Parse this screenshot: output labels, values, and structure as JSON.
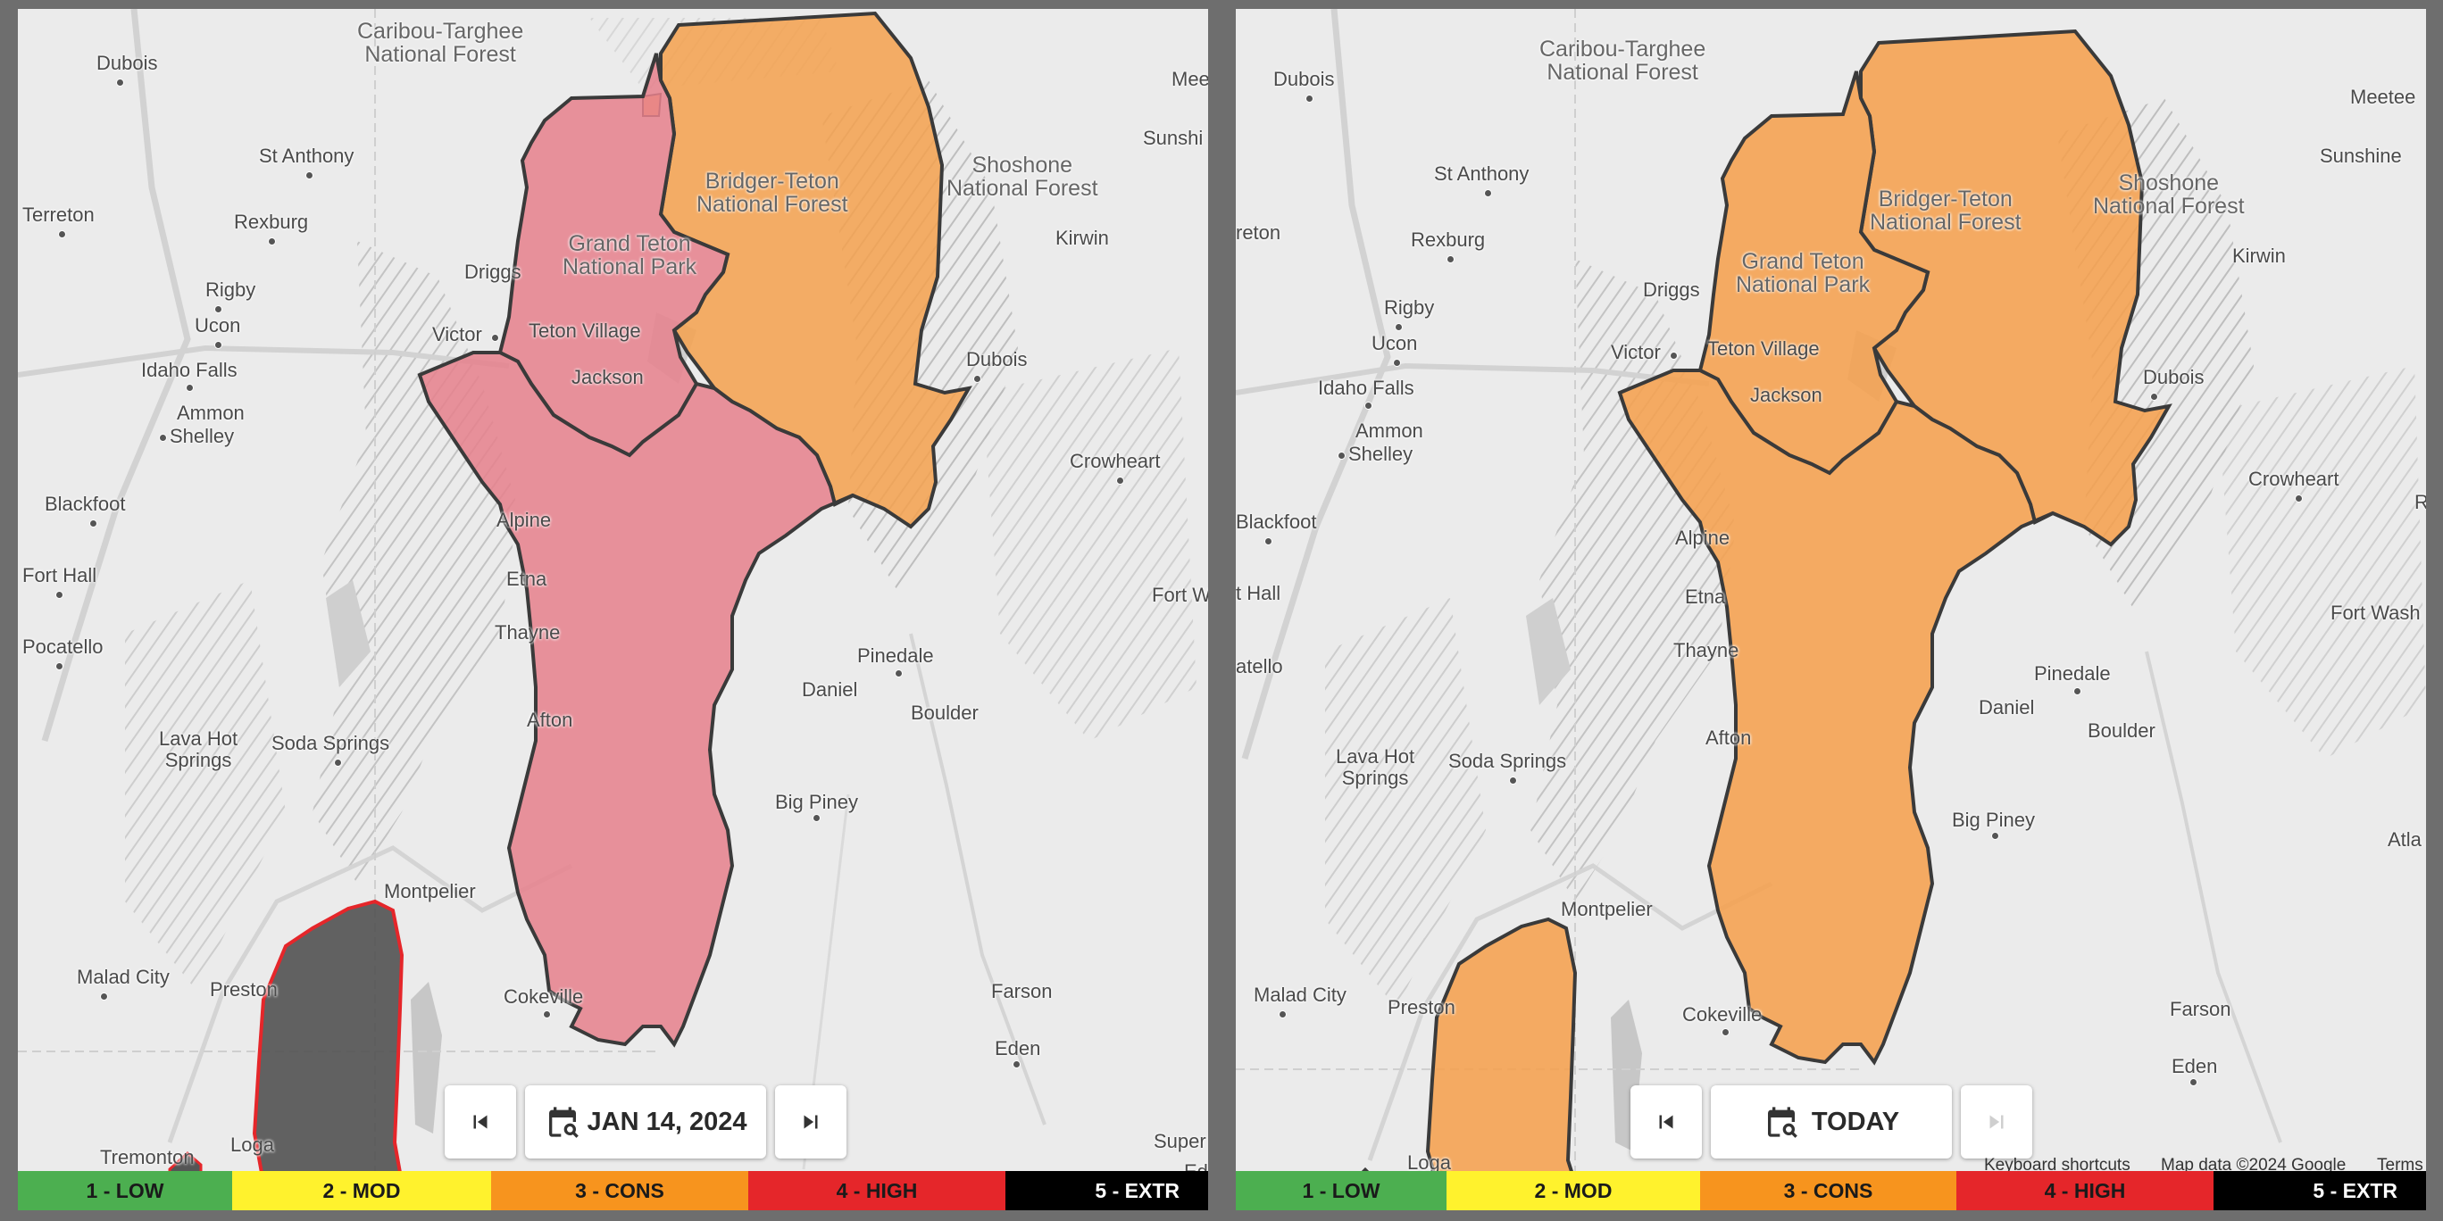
{
  "left_panel": {
    "date_label": "JAN 14, 2024",
    "zones": [
      {
        "name": "north",
        "rating": "3 - CONS",
        "color": "#f5a14e"
      },
      {
        "name": "grand-teton",
        "rating": "4 - HIGH",
        "color": "#e6808c"
      },
      {
        "name": "south",
        "rating": "4 - HIGH",
        "color": "#e6808c"
      },
      {
        "name": "far-south",
        "rating": "none",
        "color": "#555555"
      }
    ],
    "labels": {
      "caribou": "Caribou-Targhee\nNational Forest",
      "bridger": "Bridger-Teton\nNational Forest",
      "grand_teton": "Grand Teton\nNational Park",
      "shoshone": "Shoshone\nNational Forest",
      "dubois_w": "Dubois",
      "st_anthony": "St Anthony",
      "terreton": "Terreton",
      "rexburg": "Rexburg",
      "rigby": "Rigby",
      "ucon": "Ucon",
      "idaho_falls": "Idaho Falls",
      "ammon": "Ammon",
      "shelley": "Shelley",
      "blackfoot": "Blackfoot",
      "fort_hall": "Fort Hall",
      "pocatello": "Pocatello",
      "lava_hot": "Lava Hot\nSprings",
      "soda": "Soda Springs",
      "montpelier": "Montpelier",
      "malad": "Malad City",
      "preston": "Preston",
      "tremonton": "Tremonton",
      "logan": "Loga",
      "driggs": "Driggs",
      "victor": "Victor",
      "teton_village": "Teton Village",
      "jackson": "Jackson",
      "alpine": "Alpine",
      "etna": "Etna",
      "thayne": "Thayne",
      "afton": "Afton",
      "cokeville": "Cokeville",
      "dubois_e": "Dubois",
      "crowheart": "Crowheart",
      "kirwin": "Kirwin",
      "sunshine": "Sunshi",
      "meeteetse": "Mee",
      "fort_w": "Fort W",
      "pinedale": "Pinedale",
      "daniel": "Daniel",
      "boulder": "Boulder",
      "big_piney": "Big Piney",
      "farson": "Farson",
      "eden": "Eden",
      "superior": "Super",
      "eden_right": "Ede"
    }
  },
  "right_panel": {
    "date_label": "TODAY",
    "zones": [
      {
        "name": "north",
        "rating": "3 - CONS",
        "color": "#f5a14e"
      },
      {
        "name": "grand-teton",
        "rating": "3 - CONS",
        "color": "#f5a14e"
      },
      {
        "name": "south",
        "rating": "3 - CONS",
        "color": "#f5a14e"
      },
      {
        "name": "far-south",
        "rating": "3 - CONS",
        "color": "#f5a14e"
      }
    ],
    "labels": {
      "caribou": "Caribou-Targhee\nNational Forest",
      "bridger": "Bridger-Teton\nNational Forest",
      "grand_teton": "Grand Teton\nNational Park",
      "shoshone": "Shoshone\nNational Forest",
      "dubois_w": "Dubois",
      "st_anthony": "St Anthony",
      "terreton": "reton",
      "rexburg": "Rexburg",
      "rigby": "Rigby",
      "ucon": "Ucon",
      "idaho_falls": "Idaho Falls",
      "ammon": "Ammon",
      "shelley": "Shelley",
      "blackfoot": "Blackfoot",
      "fort_hall": "t Hall",
      "pocatello": "atello",
      "lava_hot": "Lava Hot\nSprings",
      "soda": "Soda Springs",
      "montpelier": "Montpelier",
      "malad": "Malad City",
      "preston": "Preston",
      "logan": "Loga",
      "driggs": "Driggs",
      "victor": "Victor",
      "teton_village": "Teton Village",
      "jackson": "Jackson",
      "alpine": "Alpine",
      "etna": "Etna",
      "thayne": "Thayne",
      "afton": "Afton",
      "cokeville": "Cokeville",
      "dubois_e": "Dubois",
      "crowheart": "Crowheart",
      "kirwin": "Kirwin",
      "sunshine": "Sunshine",
      "meeteetse": "Meetee",
      "fort_w": "Fort Wash",
      "pinedale": "Pinedale",
      "daniel": "Daniel",
      "boulder": "Boulder",
      "big_piney": "Big Piney",
      "farson": "Farson",
      "eden": "Eden",
      "atla": "Atla",
      "r_edge": "R"
    },
    "attribution": {
      "keyboard": "Keyboard shortcuts",
      "map_data": "Map data ©2024 Google",
      "terms": "Terms"
    }
  },
  "legend": [
    {
      "label": "1 - LOW",
      "bg": "#4caf50",
      "fg": "#1a1a1a"
    },
    {
      "label": "2 - MOD",
      "bg": "#fff22d",
      "fg": "#1a1a1a"
    },
    {
      "label": "3 - CONS",
      "bg": "#f7941e",
      "fg": "#1a1a1a"
    },
    {
      "label": "4 - HIGH",
      "bg": "#e5262a",
      "fg": "#1a1a1a"
    },
    {
      "label": "5 - EXTR",
      "bg": "#000000",
      "fg": "#ffffff"
    }
  ],
  "icons": {
    "first": "skip-previous-icon",
    "calendar": "calendar-search-icon",
    "next": "skip-next-icon"
  }
}
